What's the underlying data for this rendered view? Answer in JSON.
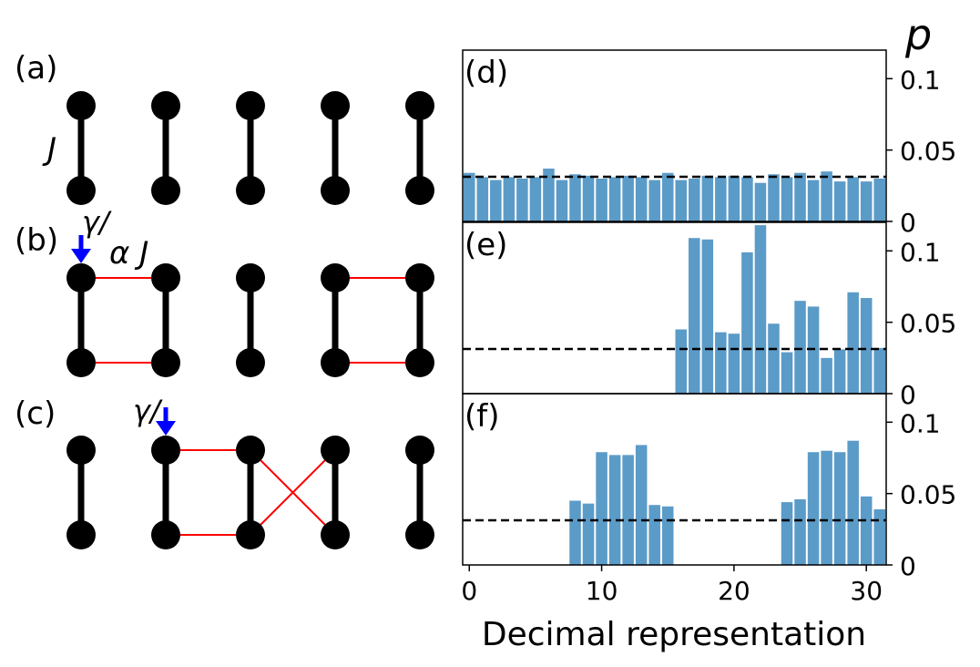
{
  "figure": {
    "panel_labels": [
      "(a)",
      "(b)",
      "(c)",
      "(d)",
      "(e)",
      "(f)"
    ],
    "diagram": {
      "coupling_label": "J",
      "alpha_label": "α J",
      "gamma_label": "γ/"
    },
    "arrow_color": "#0000ff",
    "bond_color": "#ff0000",
    "node_color": "#000000"
  },
  "chart_data": {
    "type": "bar",
    "x": [
      0,
      1,
      2,
      3,
      4,
      5,
      6,
      7,
      8,
      9,
      10,
      11,
      12,
      13,
      14,
      15,
      16,
      17,
      18,
      19,
      20,
      21,
      22,
      23,
      24,
      25,
      26,
      27,
      28,
      29,
      30,
      31
    ],
    "xlabel": "Decimal representation",
    "ylabel": "p",
    "xlim": [
      0,
      31
    ],
    "ylim": [
      0,
      0.12
    ],
    "x_ticks": [
      "0",
      "10",
      "20",
      "30"
    ],
    "y_ticks": [
      "0",
      "0.05",
      "0.1"
    ],
    "reference_line": 0.03125,
    "bar_color": "#5b9bc8",
    "panels": [
      {
        "label": "(d)",
        "values": [
          0.034,
          0.031,
          0.029,
          0.031,
          0.03,
          0.031,
          0.037,
          0.029,
          0.033,
          0.032,
          0.03,
          0.031,
          0.032,
          0.031,
          0.029,
          0.034,
          0.029,
          0.03,
          0.032,
          0.031,
          0.032,
          0.031,
          0.027,
          0.033,
          0.031,
          0.034,
          0.029,
          0.035,
          0.028,
          0.031,
          0.028,
          0.03
        ]
      },
      {
        "label": "(e)",
        "values": [
          0,
          0,
          0,
          0,
          0,
          0,
          0,
          0,
          0,
          0,
          0,
          0,
          0,
          0,
          0,
          0,
          0.045,
          0.109,
          0.108,
          0.043,
          0.042,
          0.099,
          0.118,
          0.049,
          0.029,
          0.065,
          0.061,
          0.025,
          0.031,
          0.071,
          0.067,
          0.032
        ]
      },
      {
        "label": "(f)",
        "values": [
          0,
          0,
          0,
          0,
          0,
          0,
          0,
          0,
          0.045,
          0.043,
          0.079,
          0.077,
          0.077,
          0.084,
          0.042,
          0.041,
          0,
          0,
          0,
          0,
          0,
          0,
          0,
          0,
          0.044,
          0.046,
          0.079,
          0.08,
          0.079,
          0.087,
          0.048,
          0.039
        ]
      }
    ]
  }
}
